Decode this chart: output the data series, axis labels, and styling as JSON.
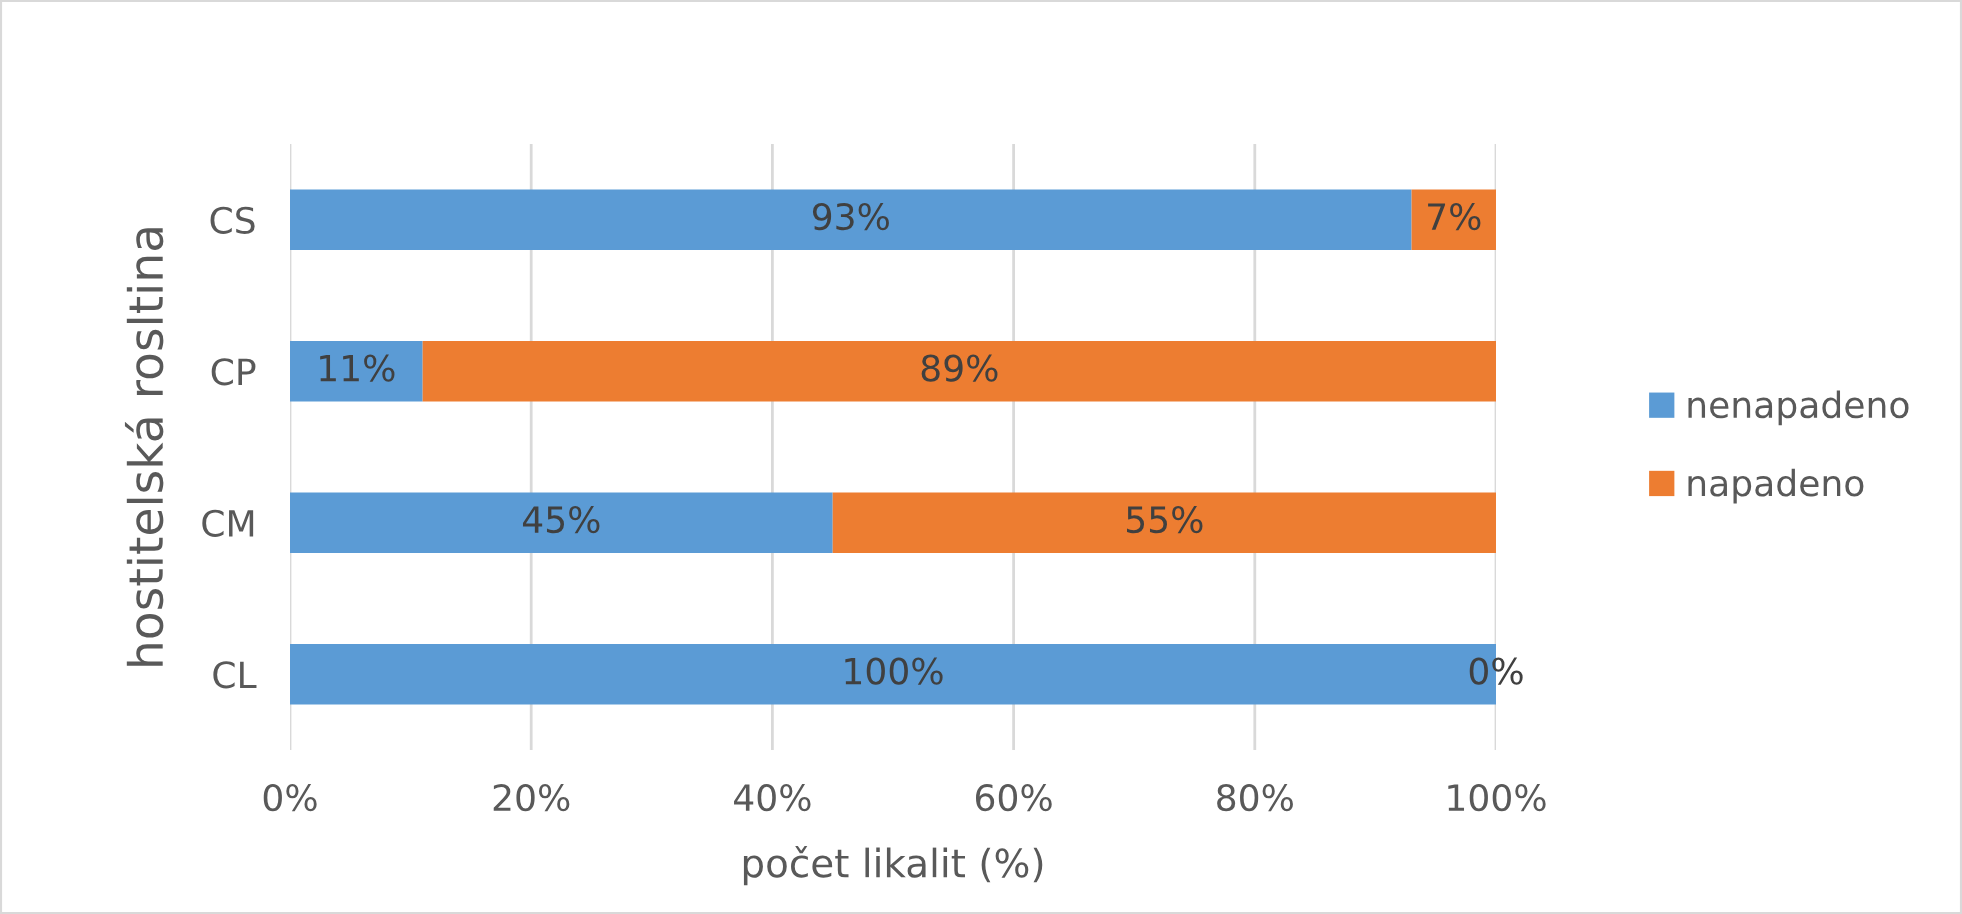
{
  "chart_data": {
    "type": "bar",
    "orientation": "horizontal",
    "stacked": true,
    "xlabel": "počet likalit (%)",
    "ylabel": "hostitelská rosltina",
    "categories": [
      "CS",
      "CP",
      "CM",
      "CL"
    ],
    "series": [
      {
        "name": "nenapadeno",
        "color": "#5b9bd5",
        "values": [
          93,
          11,
          45,
          100
        ],
        "value_labels": [
          "93%",
          "11%",
          "45%",
          "100%"
        ]
      },
      {
        "name": "napadeno",
        "color": "#ed7d31",
        "values": [
          7,
          89,
          55,
          0
        ],
        "value_labels": [
          "7%",
          "89%",
          "55%",
          "0%"
        ]
      }
    ],
    "xlim": [
      0,
      100
    ],
    "xticks": [
      {
        "value": 0,
        "label": "0%"
      },
      {
        "value": 20,
        "label": "20%"
      },
      {
        "value": 40,
        "label": "40%"
      },
      {
        "value": 60,
        "label": "60%"
      },
      {
        "value": 80,
        "label": "80%"
      },
      {
        "value": 100,
        "label": "100%"
      }
    ],
    "grid": "x",
    "legend": "right"
  }
}
